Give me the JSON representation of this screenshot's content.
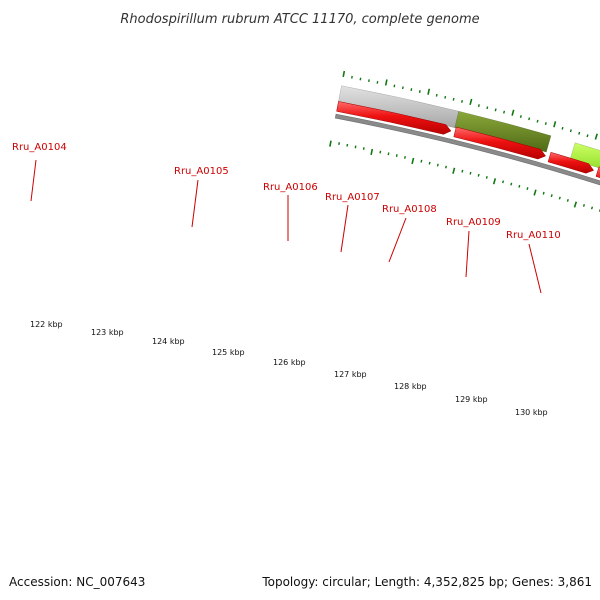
{
  "title": "Rhodospirillum rubrum ATCC 11170, complete genome",
  "footer": {
    "accession_label": "Accession:",
    "accession": "NC_007643",
    "topology_label": "Topology:",
    "topology": "circular",
    "length_label": "Length:",
    "length": "4,352,825 bp",
    "genes_label": "Genes:",
    "genes": "3,861"
  },
  "colors": {
    "cds": "#ee1111",
    "backbone": "#8a8a8a",
    "tick": "#117711",
    "label": "#cc0000",
    "grey_band": "#c4c4c4",
    "olive_band": "#6b8a24",
    "lime_band": "#a8ee3a",
    "green_band": "#3a9a30"
  },
  "gene_labels": [
    "Rru_A0104",
    "Rru_A0105",
    "Rru_A0106",
    "Rru_A0107",
    "Rru_A0108",
    "Rru_A0109",
    "Rru_A0110"
  ],
  "kbp_labels": [
    "122 kbp",
    "123 kbp",
    "124 kbp",
    "125 kbp",
    "126 kbp",
    "127 kbp",
    "128 kbp",
    "129 kbp",
    "130 kbp"
  ]
}
